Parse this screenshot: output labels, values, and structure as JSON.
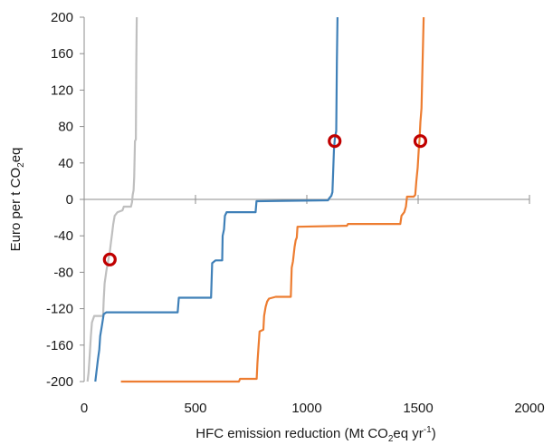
{
  "chart_data": {
    "type": "line",
    "title": "",
    "xlabel": {
      "prefix": "HFC emission reduction (Mt CO",
      "sub": "2",
      "mid": "eq  yr",
      "sup": "-1",
      "suffix": ")"
    },
    "ylabel": {
      "prefix": "Euro per t CO",
      "sub": "2",
      "suffix": "eq"
    },
    "xlim": [
      0,
      2000
    ],
    "ylim": [
      -200,
      200
    ],
    "x_ticks": [
      0,
      500,
      1000,
      1500,
      2000
    ],
    "y_ticks": [
      -200,
      -160,
      -120,
      -80,
      -40,
      0,
      40,
      80,
      120,
      160,
      200
    ],
    "x_tick_labels": [
      "0",
      "500",
      "1000",
      "1500",
      "2000"
    ],
    "y_tick_labels": [
      "-200",
      "-160",
      "-120",
      "-80",
      "-40",
      "0",
      "40",
      "80",
      "120",
      "160",
      "200"
    ],
    "grid": false,
    "series": [
      {
        "color": "#bfbfbf",
        "points": [
          [
            15,
            -200
          ],
          [
            20,
            -190
          ],
          [
            25,
            -170
          ],
          [
            30,
            -150
          ],
          [
            35,
            -135
          ],
          [
            45,
            -128
          ],
          [
            85,
            -128
          ],
          [
            88,
            -110
          ],
          [
            92,
            -92
          ],
          [
            100,
            -78
          ],
          [
            108,
            -67
          ],
          [
            115,
            -58
          ],
          [
            120,
            -48
          ],
          [
            125,
            -38
          ],
          [
            130,
            -28
          ],
          [
            137,
            -18
          ],
          [
            150,
            -14
          ],
          [
            172,
            -12
          ],
          [
            178,
            -8
          ],
          [
            210,
            -8
          ],
          [
            215,
            -3
          ],
          [
            218,
            5
          ],
          [
            222,
            10
          ],
          [
            225,
            25
          ],
          [
            228,
            64
          ],
          [
            232,
            66
          ],
          [
            234,
            150
          ],
          [
            236,
            200
          ]
        ]
      },
      {
        "color": "#3f80b8",
        "points": [
          [
            50,
            -200
          ],
          [
            55,
            -190
          ],
          [
            62,
            -175
          ],
          [
            68,
            -165
          ],
          [
            72,
            -150
          ],
          [
            80,
            -138
          ],
          [
            88,
            -126
          ],
          [
            100,
            -124
          ],
          [
            420,
            -124
          ],
          [
            425,
            -108
          ],
          [
            570,
            -108
          ],
          [
            575,
            -70
          ],
          [
            590,
            -67
          ],
          [
            620,
            -67
          ],
          [
            622,
            -40
          ],
          [
            628,
            -33
          ],
          [
            632,
            -18
          ],
          [
            640,
            -14
          ],
          [
            770,
            -14
          ],
          [
            774,
            -2
          ],
          [
            1095,
            -1
          ],
          [
            1100,
            1
          ],
          [
            1110,
            4
          ],
          [
            1115,
            8
          ],
          [
            1122,
            55
          ],
          [
            1125,
            65
          ],
          [
            1128,
            70
          ],
          [
            1132,
            75
          ],
          [
            1135,
            150
          ],
          [
            1138,
            200
          ]
        ]
      },
      {
        "color": "#ed7d31",
        "points": [
          [
            165,
            -200
          ],
          [
            695,
            -200
          ],
          [
            700,
            -197
          ],
          [
            775,
            -197
          ],
          [
            778,
            -180
          ],
          [
            782,
            -165
          ],
          [
            788,
            -145
          ],
          [
            805,
            -143
          ],
          [
            808,
            -128
          ],
          [
            815,
            -118
          ],
          [
            822,
            -112
          ],
          [
            830,
            -109
          ],
          [
            860,
            -107
          ],
          [
            928,
            -107
          ],
          [
            932,
            -75
          ],
          [
            938,
            -68
          ],
          [
            945,
            -52
          ],
          [
            950,
            -45
          ],
          [
            955,
            -42
          ],
          [
            958,
            -30
          ],
          [
            1180,
            -29
          ],
          [
            1185,
            -27
          ],
          [
            1420,
            -27
          ],
          [
            1425,
            -18
          ],
          [
            1438,
            -14
          ],
          [
            1445,
            -8
          ],
          [
            1450,
            3
          ],
          [
            1480,
            3
          ],
          [
            1487,
            5
          ],
          [
            1492,
            20
          ],
          [
            1498,
            35
          ],
          [
            1503,
            55
          ],
          [
            1506,
            65
          ],
          [
            1510,
            85
          ],
          [
            1515,
            100
          ],
          [
            1520,
            150
          ],
          [
            1525,
            200
          ]
        ]
      }
    ],
    "markers": [
      {
        "x": 115,
        "y": -66,
        "color": "#c00000"
      },
      {
        "x": 1125,
        "y": 64,
        "color": "#c00000"
      },
      {
        "x": 1510,
        "y": 64,
        "color": "#c00000"
      }
    ]
  }
}
